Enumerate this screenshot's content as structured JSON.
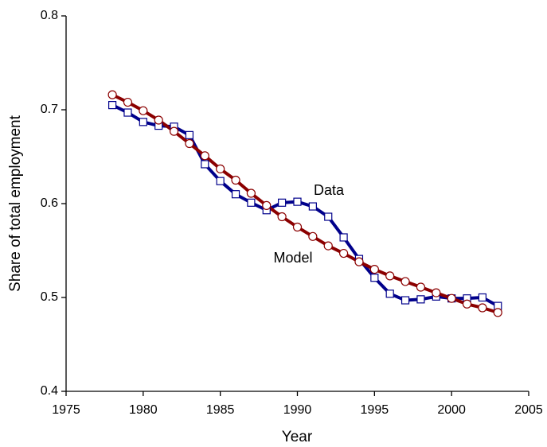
{
  "chart_data": {
    "type": "line",
    "x_label": "Year",
    "y_label": "Share of total employment",
    "x": [
      1978,
      1979,
      1980,
      1981,
      1982,
      1983,
      1984,
      1985,
      1986,
      1987,
      1988,
      1989,
      1990,
      1991,
      1992,
      1993,
      1994,
      1995,
      1996,
      1997,
      1998,
      1999,
      2000,
      2001,
      2002,
      2003
    ],
    "series": [
      {
        "name": "Data",
        "color": "#00008b",
        "marker": "square",
        "values": [
          0.705,
          0.697,
          0.687,
          0.683,
          0.682,
          0.673,
          0.642,
          0.624,
          0.61,
          0.601,
          0.593,
          0.601,
          0.602,
          0.597,
          0.586,
          0.564,
          0.541,
          0.521,
          0.504,
          0.497,
          0.498,
          0.501,
          0.499,
          0.499,
          0.5,
          0.491
        ]
      },
      {
        "name": "Model",
        "color": "#8b0000",
        "marker": "circle",
        "values": [
          0.716,
          0.708,
          0.699,
          0.689,
          0.677,
          0.664,
          0.651,
          0.637,
          0.625,
          0.611,
          0.598,
          0.586,
          0.575,
          0.565,
          0.555,
          0.547,
          0.538,
          0.53,
          0.523,
          0.517,
          0.511,
          0.505,
          0.499,
          0.493,
          0.489,
          0.484
        ]
      }
    ],
    "xlim": [
      1975,
      2005
    ],
    "xticks": [
      1975,
      1980,
      1985,
      1990,
      1995,
      2000,
      2005
    ],
    "ylim": [
      0.4,
      0.8
    ],
    "yticks": [
      0.4,
      0.5,
      0.6,
      0.7,
      0.8
    ],
    "grid": false
  }
}
